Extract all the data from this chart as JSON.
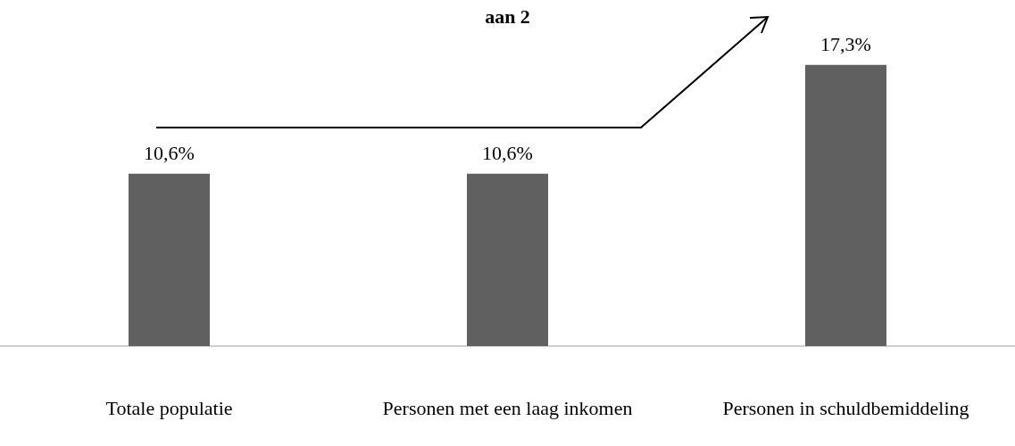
{
  "chart_data": {
    "type": "bar",
    "title": "aan 2",
    "categories": [
      "Totale populatie",
      "Personen met een laag inkomen",
      "Personen in schuldbemiddeling"
    ],
    "values": [
      10.6,
      10.6,
      17.3
    ],
    "color": "#606060",
    "value_labels": [
      "10,6%",
      "10,6%",
      "17,3%"
    ],
    "grid": false
  }
}
